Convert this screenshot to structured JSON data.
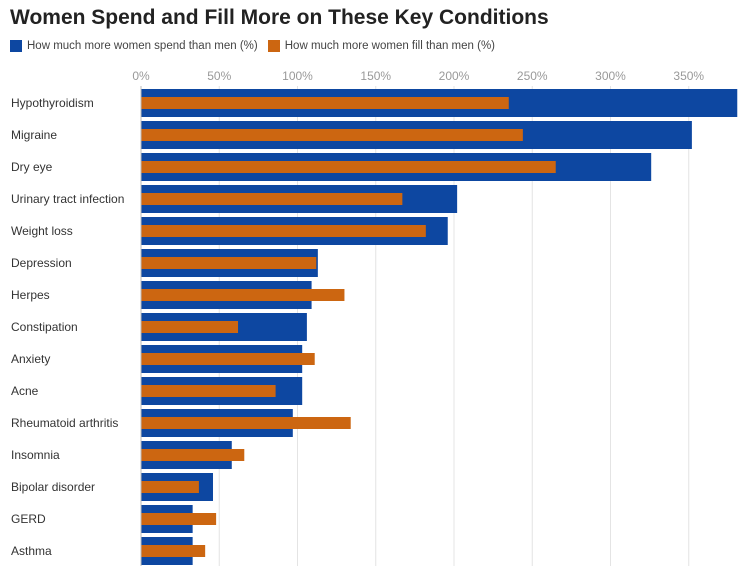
{
  "chart_data": {
    "type": "bar",
    "orientation": "horizontal",
    "title": "Women Spend and Fill More on These Key Conditions",
    "categories": [
      "Hypothyroidism",
      "Migraine",
      "Dry eye",
      "Urinary tract infection",
      "Weight loss",
      "Depression",
      "Herpes",
      "Constipation",
      "Anxiety",
      "Acne",
      "Rheumatoid arthritis",
      "Insomnia",
      "Bipolar disorder",
      "GERD",
      "Asthma"
    ],
    "series": [
      {
        "name": "How much more women spend than men (%)",
        "color": "#0d47a1",
        "values": [
          381,
          352,
          326,
          202,
          196,
          113,
          109,
          106,
          103,
          103,
          97,
          58,
          46,
          33,
          33
        ]
      },
      {
        "name": "How much more women fill than men (%)",
        "color": "#cc6611",
        "values": [
          235,
          244,
          265,
          167,
          182,
          112,
          130,
          62,
          111,
          86,
          134,
          66,
          37,
          48,
          41
        ]
      }
    ],
    "x_ticks": [
      "0%",
      "50%",
      "100%",
      "150%",
      "200%",
      "250%",
      "300%",
      "350%"
    ],
    "xlim": [
      0,
      381
    ],
    "grid": true,
    "legend_position": "top"
  }
}
